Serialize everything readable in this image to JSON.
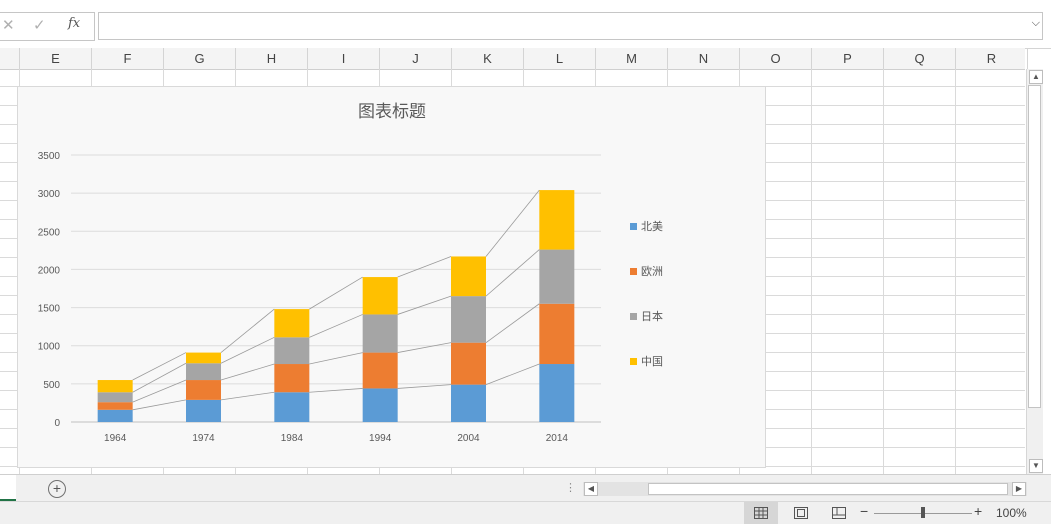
{
  "formula_bar": {
    "cancel_symbol": "✕",
    "enter_symbol": "✓",
    "fx_symbol": "fx",
    "value": ""
  },
  "columns": [
    "E",
    "F",
    "G",
    "H",
    "I",
    "J",
    "K",
    "L",
    "M",
    "N",
    "O",
    "P",
    "Q",
    "R"
  ],
  "chart_data": {
    "type": "bar",
    "stacked": true,
    "title": "图表标题",
    "categories": [
      "1964",
      "1974",
      "1984",
      "1994",
      "2004",
      "2014"
    ],
    "series": [
      {
        "name": "北美",
        "color": "#5b9bd5",
        "values": [
          160,
          290,
          390,
          440,
          490,
          760
        ]
      },
      {
        "name": "欧洲",
        "color": "#ed7d31",
        "values": [
          100,
          260,
          370,
          470,
          550,
          790
        ]
      },
      {
        "name": "日本",
        "color": "#a5a5a5",
        "values": [
          130,
          220,
          350,
          500,
          610,
          710
        ]
      },
      {
        "name": "中国",
        "color": "#ffc000",
        "values": [
          160,
          140,
          370,
          490,
          520,
          780
        ]
      }
    ],
    "ylim": [
      0,
      3500
    ],
    "yticks": [
      0,
      500,
      1000,
      1500,
      2000,
      2500,
      3000,
      3500
    ],
    "gridlines": true,
    "series_lines": true,
    "legend_position": "right"
  },
  "status_bar": {
    "view_normal_icon": "grid-icon",
    "view_page_layout_icon": "page-layout-icon",
    "view_page_break_icon": "page-break-icon",
    "zoom_minus": "−",
    "zoom_plus": "+",
    "zoom_level": "100%"
  },
  "sheet_bar": {
    "add_sheet": "+"
  }
}
